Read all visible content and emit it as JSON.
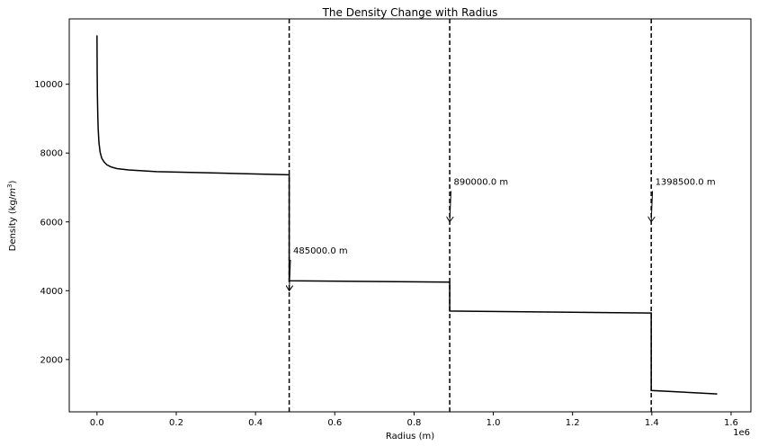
{
  "chart_data": {
    "type": "line",
    "title": "The Density Change with Radius",
    "xlabel": "Radius (m)",
    "ylabel_prefix": "Density (kg/",
    "ylabel_unit_base": "m",
    "ylabel_unit_exp": "3",
    "ylabel_suffix": ")",
    "x_offset_label": "1e6",
    "xlim": [
      -70000,
      1650000
    ],
    "ylim": [
      480,
      11900
    ],
    "x_ticks": [
      {
        "value": 0,
        "label": "0.0"
      },
      {
        "value": 200000,
        "label": "0.2"
      },
      {
        "value": 400000,
        "label": "0.4"
      },
      {
        "value": 600000,
        "label": "0.6"
      },
      {
        "value": 800000,
        "label": "0.8"
      },
      {
        "value": 1000000,
        "label": "1.0"
      },
      {
        "value": 1200000,
        "label": "1.2"
      },
      {
        "value": 1400000,
        "label": "1.4"
      },
      {
        "value": 1600000,
        "label": "1.6"
      }
    ],
    "y_ticks": [
      {
        "value": 2000,
        "label": "2000"
      },
      {
        "value": 4000,
        "label": "4000"
      },
      {
        "value": 6000,
        "label": "6000"
      },
      {
        "value": 8000,
        "label": "8000"
      },
      {
        "value": 10000,
        "label": "10000"
      }
    ],
    "grid": false,
    "line_color": "#000000",
    "series": [
      {
        "x": [
          0,
          500,
          1000,
          2000,
          3000,
          5000,
          8000,
          12000,
          18000,
          25000,
          35000,
          50000,
          80000,
          150000,
          300000,
          484000,
          485000,
          485000,
          890000,
          890000,
          890000,
          1398000,
          1398500,
          1398500,
          1565000
        ],
        "y": [
          11420,
          10300,
          9700,
          9100,
          8700,
          8300,
          8020,
          7850,
          7740,
          7660,
          7600,
          7550,
          7510,
          7460,
          7420,
          7370,
          7370,
          4290,
          4250,
          4250,
          3410,
          3350,
          3350,
          1100,
          1000
        ]
      }
    ],
    "reference_lines": [
      485000,
      890000,
      1398500
    ],
    "annotations": [
      {
        "text": "485000.0 m",
        "x": 485000,
        "y": 4000,
        "text_x": 495000,
        "text_y": 5000
      },
      {
        "text": "890000.0 m",
        "x": 890000,
        "y": 6000,
        "text_x": 900000,
        "text_y": 7000
      },
      {
        "text": "1398500.0 m",
        "x": 1398500,
        "y": 6000,
        "text_x": 1408500,
        "text_y": 7000
      }
    ]
  }
}
